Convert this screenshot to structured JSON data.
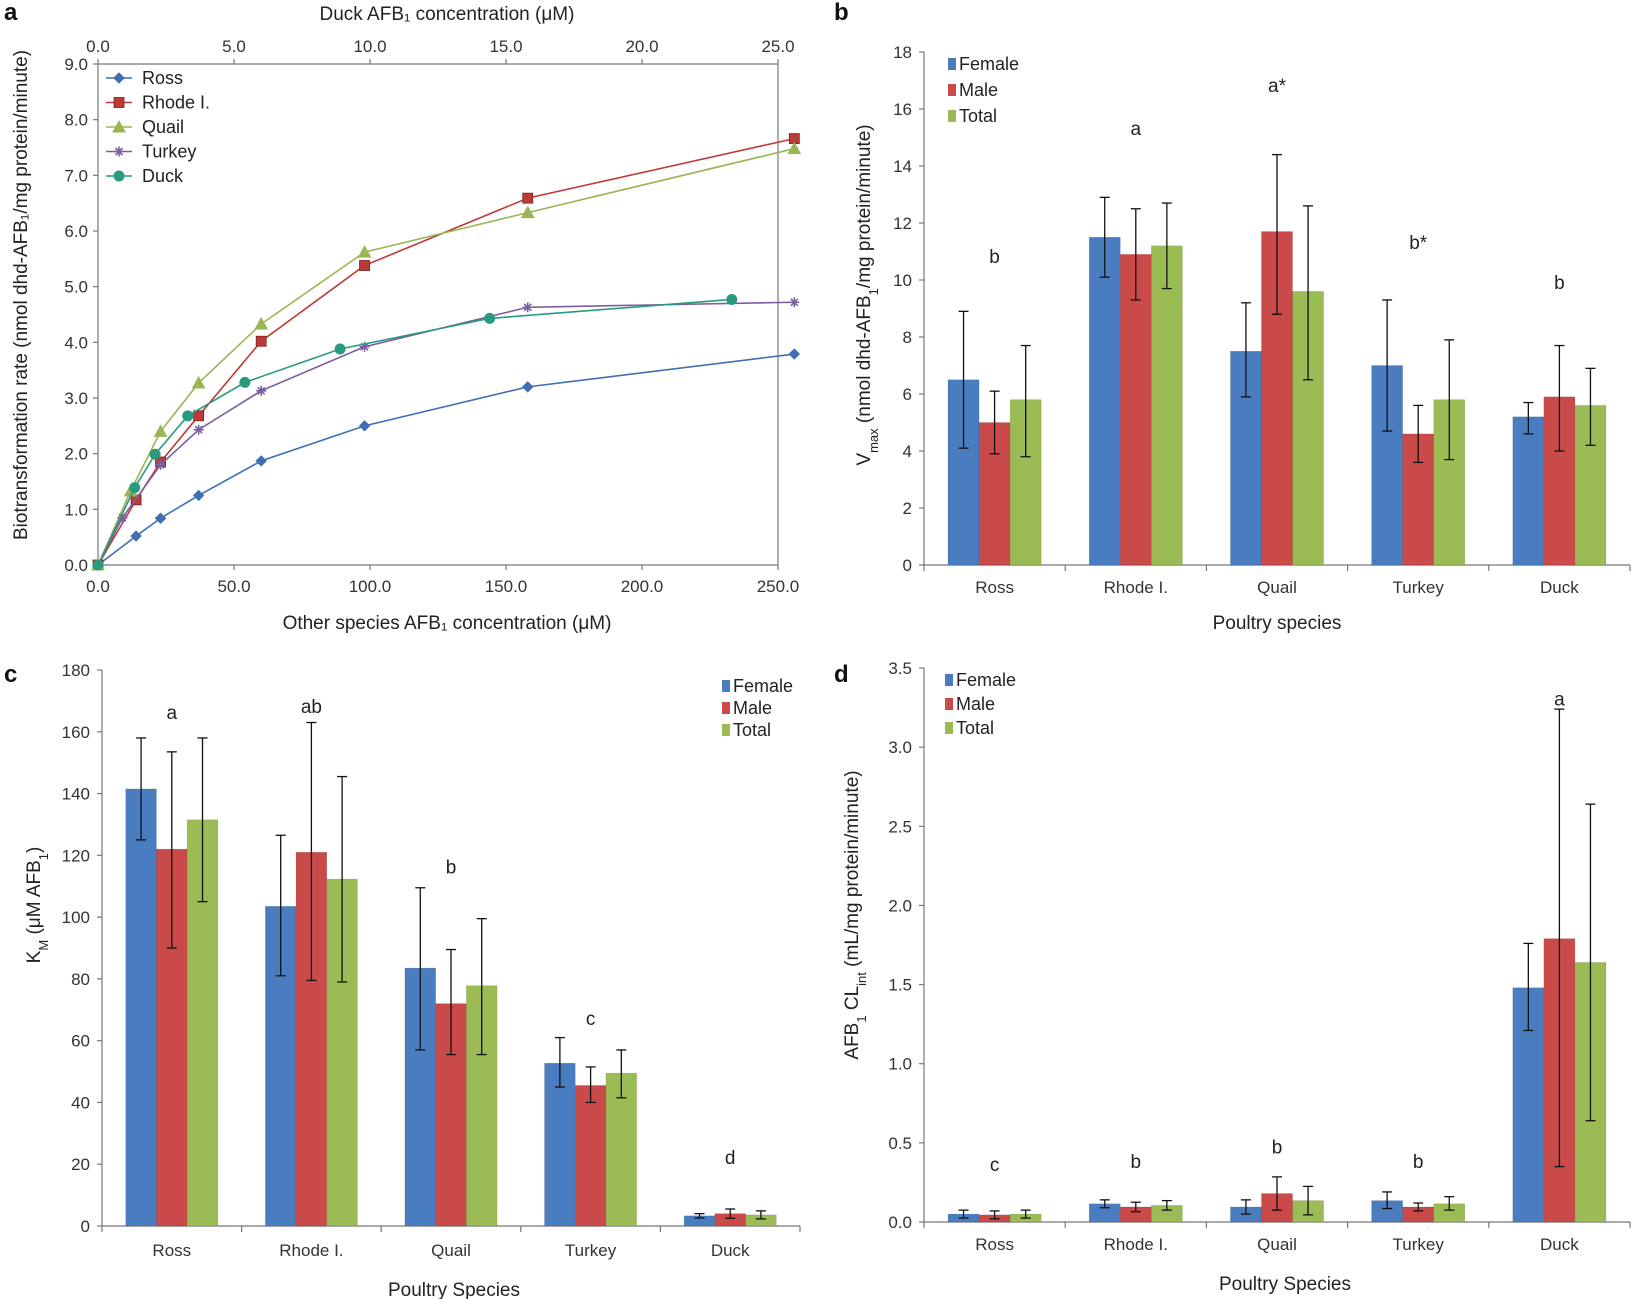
{
  "colors": {
    "female": "#4a7dc0",
    "male": "#c94a48",
    "total": "#9bbb55",
    "ross": "#3f6fb2",
    "rhode": "#bd3a37",
    "quail": "#9ab553",
    "turkey": "#7b5fa0",
    "duck": "#2a9a7e"
  },
  "panels": {
    "a": {
      "letter": "a",
      "top_axis_title": "Duck AFB₁ concentration (μM)",
      "bottom_axis_title": "Other species AFB₁ concentration (μM)",
      "y_axis_title": "Biotransformation rate (nmol dhd-AFB₁/mg protein/minute)"
    },
    "b": {
      "letter": "b",
      "y_axis_title_html": "V<tspan baseline-shift='sub' font-size='13'>max</tspan> (nmol dhd-AFB<tspan baseline-shift='sub' font-size='13'>1</tspan>/mg protein/minute)",
      "x_axis_title": "Poultry species"
    },
    "c": {
      "letter": "c",
      "x_axis_title": "Poultry Species"
    },
    "d": {
      "letter": "d",
      "x_axis_title": "Poultry Species"
    }
  },
  "chart_data": [
    {
      "id": "a",
      "type": "line",
      "title": "",
      "xlabel": "Other species AFB₁ concentration (μM)",
      "x2label": "Duck AFB₁ concentration (μM)",
      "ylabel": "Biotransformation rate (nmol dhd-AFB₁/mg protein/minute)",
      "xlim": [
        0,
        250
      ],
      "x2lim": [
        0,
        25
      ],
      "ylim": [
        0,
        9
      ],
      "xticks": [
        "0.0",
        "50.0",
        "100.0",
        "150.0",
        "200.0",
        "250.0"
      ],
      "x2ticks": [
        "0.0",
        "5.0",
        "10.0",
        "15.0",
        "20.0",
        "25.0"
      ],
      "yticks": [
        "0.0",
        "1.0",
        "2.0",
        "3.0",
        "4.0",
        "5.0",
        "6.0",
        "7.0",
        "8.0",
        "9.0"
      ],
      "legend": [
        "Ross",
        "Rhode I.",
        "Quail",
        "Turkey",
        "Duck"
      ],
      "series": [
        {
          "name": "Ross",
          "color_key": "ross",
          "marker": "diamond",
          "axis": "bottom",
          "x": [
            0,
            14,
            23,
            37,
            60,
            98,
            158,
            256
          ],
          "y": [
            0,
            0.52,
            0.84,
            1.25,
            1.87,
            2.5,
            3.2,
            3.79
          ]
        },
        {
          "name": "Rhode I.",
          "color_key": "rhode",
          "marker": "square",
          "axis": "bottom",
          "x": [
            0,
            14,
            23,
            37,
            60,
            98,
            158,
            256
          ],
          "y": [
            0,
            1.17,
            1.85,
            2.68,
            4.02,
            5.38,
            6.59,
            7.66
          ]
        },
        {
          "name": "Quail",
          "color_key": "quail",
          "marker": "triangle",
          "axis": "bottom",
          "x": [
            0,
            12,
            23,
            37,
            60,
            98,
            158,
            256
          ],
          "y": [
            0,
            1.33,
            2.4,
            3.27,
            4.33,
            5.62,
            6.33,
            7.48
          ]
        },
        {
          "name": "Turkey",
          "color_key": "turkey",
          "marker": "star",
          "axis": "bottom",
          "x": [
            0,
            9,
            23,
            37,
            60,
            98,
            158,
            256
          ],
          "y": [
            0,
            0.85,
            1.8,
            2.43,
            3.13,
            3.92,
            4.63,
            4.72
          ]
        },
        {
          "name": "Duck",
          "color_key": "duck",
          "marker": "circle",
          "axis": "top",
          "x": [
            0,
            1.35,
            2.1,
            3.3,
            5.4,
            8.9,
            14.4,
            23.3
          ],
          "y": [
            0,
            1.39,
            1.99,
            2.68,
            3.28,
            3.88,
            4.43,
            4.77
          ]
        }
      ]
    },
    {
      "id": "b",
      "type": "bar",
      "title": "",
      "xlabel": "Poultry species",
      "ylabel": "Vmax (nmol dhd-AFB1/mg protein/minute)",
      "ylim": [
        0,
        18
      ],
      "yticks": [
        "0",
        "2",
        "4",
        "6",
        "8",
        "10",
        "12",
        "14",
        "16",
        "18"
      ],
      "categories": [
        "Ross",
        "Rhode I.",
        "Quail",
        "Turkey",
        "Duck"
      ],
      "legend": [
        "Female",
        "Male",
        "Total"
      ],
      "series": [
        {
          "name": "Female",
          "color_key": "female",
          "values": [
            6.5,
            11.5,
            7.5,
            7.0,
            5.2
          ],
          "err_low": [
            4.1,
            10.1,
            5.9,
            4.7,
            4.6
          ],
          "err_high": [
            8.9,
            12.9,
            9.2,
            9.3,
            5.7
          ]
        },
        {
          "name": "Male",
          "color_key": "male",
          "values": [
            5.0,
            10.9,
            11.7,
            4.6,
            5.9
          ],
          "err_low": [
            3.9,
            9.3,
            8.8,
            3.6,
            4.0
          ],
          "err_high": [
            6.1,
            12.5,
            14.4,
            5.6,
            7.7
          ]
        },
        {
          "name": "Total",
          "color_key": "total",
          "values": [
            5.8,
            11.2,
            9.6,
            5.8,
            5.6
          ],
          "err_low": [
            3.8,
            9.7,
            6.5,
            3.7,
            4.2
          ],
          "err_high": [
            7.7,
            12.7,
            12.6,
            7.9,
            6.9
          ]
        }
      ],
      "annotations": [
        {
          "text": "b",
          "category": 0,
          "y": 10.8
        },
        {
          "text": "a",
          "category": 1,
          "y": 15.3
        },
        {
          "text": "a*",
          "category": 2,
          "y": 16.8
        },
        {
          "text": "b*",
          "category": 3,
          "y": 11.3
        },
        {
          "text": "b",
          "category": 4,
          "y": 9.9
        }
      ]
    },
    {
      "id": "c",
      "type": "bar",
      "title": "",
      "xlabel": "Poultry Species",
      "ylabel": "KM (μM AFB1)",
      "ylim": [
        0,
        180
      ],
      "yticks": [
        "0",
        "20",
        "40",
        "60",
        "80",
        "100",
        "120",
        "140",
        "160",
        "180"
      ],
      "categories": [
        "Ross",
        "Rhode I.",
        "Quail",
        "Turkey",
        "Duck"
      ],
      "legend": [
        "Female",
        "Male",
        "Total"
      ],
      "series": [
        {
          "name": "Female",
          "color_key": "female",
          "values": [
            141.5,
            103.5,
            83.5,
            52.7,
            3.3
          ],
          "err_low": [
            125,
            81,
            57,
            45,
            2.6
          ],
          "err_high": [
            158,
            126.5,
            109.5,
            61,
            4.0
          ]
        },
        {
          "name": "Male",
          "color_key": "male",
          "values": [
            122,
            121,
            72,
            45.5,
            4.0
          ],
          "err_low": [
            90,
            79.5,
            55.5,
            40,
            2.5
          ],
          "err_high": [
            153.5,
            163,
            89.5,
            51.5,
            5.5
          ]
        },
        {
          "name": "Total",
          "color_key": "total",
          "values": [
            131.5,
            112.3,
            77.8,
            49.5,
            3.6
          ],
          "err_low": [
            105,
            79,
            55.5,
            41.5,
            2.3
          ],
          "err_high": [
            158,
            145.5,
            99.5,
            57,
            4.9
          ]
        }
      ],
      "annotations": [
        {
          "text": "a",
          "category": 0,
          "y": 166
        },
        {
          "text": "ab",
          "category": 1,
          "y": 168
        },
        {
          "text": "b",
          "category": 2,
          "y": 116
        },
        {
          "text": "c",
          "category": 3,
          "y": 67
        },
        {
          "text": "d",
          "category": 4,
          "y": 22
        }
      ]
    },
    {
      "id": "d",
      "type": "bar",
      "title": "",
      "xlabel": "Poultry Species",
      "ylabel": "AFB1 CLint (mL/mg protein/minute)",
      "ylim": [
        0,
        3.5
      ],
      "yticks": [
        "0.0",
        "0.5",
        "1.0",
        "1.5",
        "2.0",
        "2.5",
        "3.0",
        "3.5"
      ],
      "categories": [
        "Ross",
        "Rhode I.",
        "Quail",
        "Turkey",
        "Duck"
      ],
      "legend": [
        "Female",
        "Male",
        "Total"
      ],
      "series": [
        {
          "name": "Female",
          "color_key": "female",
          "values": [
            0.05,
            0.115,
            0.095,
            0.135,
            1.48
          ],
          "err_low": [
            0.025,
            0.09,
            0.05,
            0.085,
            1.21
          ],
          "err_high": [
            0.075,
            0.14,
            0.14,
            0.19,
            1.76
          ]
        },
        {
          "name": "Male",
          "color_key": "male",
          "values": [
            0.045,
            0.095,
            0.18,
            0.095,
            1.79
          ],
          "err_low": [
            0.02,
            0.065,
            0.075,
            0.07,
            0.35
          ],
          "err_high": [
            0.07,
            0.125,
            0.285,
            0.12,
            3.24
          ]
        },
        {
          "name": "Total",
          "color_key": "total",
          "values": [
            0.05,
            0.105,
            0.135,
            0.115,
            1.64
          ],
          "err_low": [
            0.025,
            0.075,
            0.045,
            0.075,
            0.64
          ],
          "err_high": [
            0.075,
            0.135,
            0.225,
            0.16,
            2.64
          ]
        }
      ],
      "annotations": [
        {
          "text": "c",
          "category": 0,
          "y": 0.36
        },
        {
          "text": "b",
          "category": 1,
          "y": 0.38
        },
        {
          "text": "b",
          "category": 2,
          "y": 0.47
        },
        {
          "text": "b",
          "category": 3,
          "y": 0.38
        },
        {
          "text": "a",
          "category": 4,
          "y": 3.3
        }
      ]
    }
  ]
}
